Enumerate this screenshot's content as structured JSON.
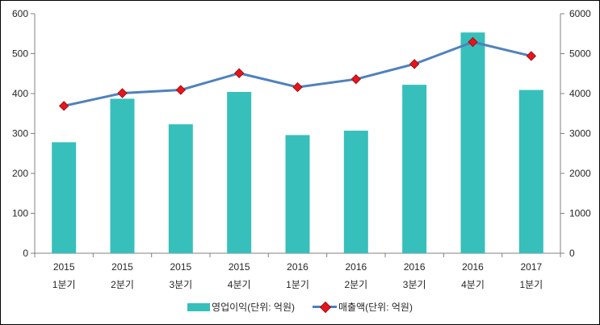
{
  "chart_data": {
    "type": "combo-bar-line",
    "title": "",
    "categories": [
      {
        "year": "2015",
        "quarter": "1분기"
      },
      {
        "year": "2015",
        "quarter": "2분기"
      },
      {
        "year": "2015",
        "quarter": "3분기"
      },
      {
        "year": "2015",
        "quarter": "4분기"
      },
      {
        "year": "2016",
        "quarter": "1분기"
      },
      {
        "year": "2016",
        "quarter": "2분기"
      },
      {
        "year": "2016",
        "quarter": "3분기"
      },
      {
        "year": "2016",
        "quarter": "4분기"
      },
      {
        "year": "2017",
        "quarter": "1분기"
      }
    ],
    "series": [
      {
        "name": "영업이익(단위: 억원)",
        "type": "bar",
        "axis": "left",
        "color": "#37bfbb",
        "values": [
          278,
          387,
          323,
          404,
          296,
          307,
          422,
          553,
          409
        ]
      },
      {
        "name": "매출액(단위: 억원)",
        "type": "line",
        "axis": "right",
        "color": "#4f81bd",
        "marker": "diamond",
        "marker_color": "#e8141c",
        "marker_edge_color": "#9b1313",
        "values": [
          3690,
          4010,
          4090,
          4510,
          4160,
          4360,
          4740,
          5290,
          4940
        ]
      }
    ],
    "left_axis": {
      "min": 0,
      "max": 600,
      "step": 100,
      "tick_labels": [
        "0",
        "100",
        "200",
        "300",
        "400",
        "500",
        "600"
      ]
    },
    "right_axis": {
      "min": 0,
      "max": 6000,
      "step": 1000,
      "tick_labels": [
        "0",
        "1000",
        "2000",
        "3000",
        "4000",
        "5000",
        "6000"
      ]
    },
    "legend_position": "bottom",
    "grid": false,
    "colors": {
      "axis_line": "#808080",
      "tick_text": "#262626",
      "background": "#ffffff",
      "border": "#000000"
    }
  }
}
